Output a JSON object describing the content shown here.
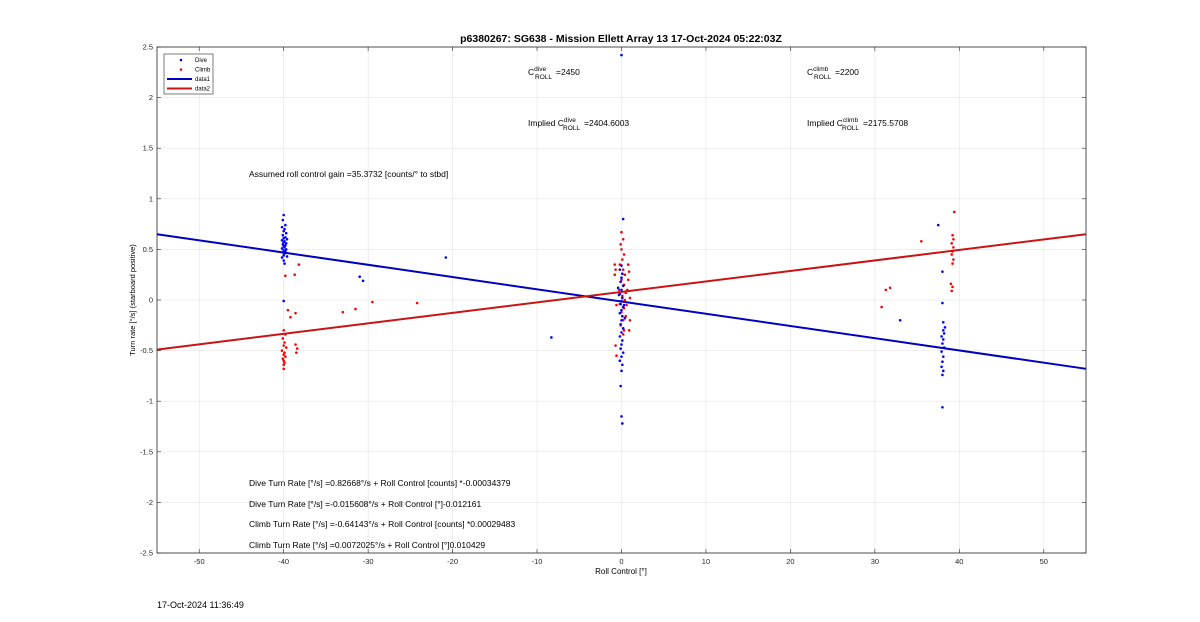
{
  "chart_data": {
    "type": "scatter",
    "title": "p6380267: SG638 - Mission Ellett Array 13 17-Oct-2024 05:22:03Z",
    "xlabel": "Roll Control [°]",
    "ylabel": "Turn rate [°/s] (starboard positive)",
    "xlim": [
      -55,
      55
    ],
    "ylim": [
      -2.5,
      2.5
    ],
    "xticks": [
      -50,
      -40,
      -30,
      -20,
      -10,
      0,
      10,
      20,
      30,
      40,
      50
    ],
    "yticks": [
      -2.5,
      -2,
      -1.5,
      -1,
      -0.5,
      0,
      0.5,
      1,
      1.5,
      2,
      2.5
    ],
    "grid": true,
    "legend_position": "top-left",
    "legend": [
      {
        "label": "Dive",
        "kind": "marker",
        "color": "#0000ff"
      },
      {
        "label": "Climb",
        "kind": "marker",
        "color": "#ff0000"
      },
      {
        "label": "data1",
        "kind": "line",
        "color": "#0000bf"
      },
      {
        "label": "data2",
        "kind": "line",
        "color": "#c81414"
      }
    ],
    "lines": [
      {
        "name": "data1",
        "color": "#0000bf",
        "x": [
          -55,
          55
        ],
        "y": [
          0.65,
          -0.68
        ]
      },
      {
        "name": "data2",
        "color": "#c81414",
        "x": [
          -55,
          55
        ],
        "y": [
          -0.49,
          0.65
        ]
      }
    ],
    "series": [
      {
        "name": "Dive",
        "color": "#0000ff",
        "points": [
          [
            -40,
            0.84
          ],
          [
            -40.1,
            0.79
          ],
          [
            -39.8,
            0.74
          ],
          [
            -40.2,
            0.72
          ],
          [
            -39.9,
            0.7
          ],
          [
            -40,
            0.68
          ],
          [
            -39.7,
            0.66
          ],
          [
            -40.1,
            0.64
          ],
          [
            -39.8,
            0.62
          ],
          [
            -40,
            0.61
          ],
          [
            -39.6,
            0.6
          ],
          [
            -40.2,
            0.59
          ],
          [
            -39.9,
            0.58
          ],
          [
            -40,
            0.57
          ],
          [
            -39.7,
            0.56
          ],
          [
            -40.1,
            0.55
          ],
          [
            -39.8,
            0.54
          ],
          [
            -40,
            0.53
          ],
          [
            -39.9,
            0.52
          ],
          [
            -40.2,
            0.51
          ],
          [
            -39.7,
            0.5
          ],
          [
            -40,
            0.49
          ],
          [
            -39.8,
            0.48
          ],
          [
            -40.1,
            0.47
          ],
          [
            -39.9,
            0.46
          ],
          [
            -40,
            0.44
          ],
          [
            -39.6,
            0.43
          ],
          [
            -40.2,
            0.42
          ],
          [
            -40,
            0.39
          ],
          [
            -39.9,
            0.36
          ],
          [
            -40,
            -0.01
          ],
          [
            -31,
            0.23
          ],
          [
            -30.6,
            0.19
          ],
          [
            -20.8,
            0.42
          ],
          [
            -8.3,
            -0.37
          ],
          [
            0,
            2.42
          ],
          [
            0.2,
            0.8
          ],
          [
            0,
            0.34
          ],
          [
            -0.2,
            0.3
          ],
          [
            0.1,
            0.26
          ],
          [
            0,
            0.22
          ],
          [
            -0.1,
            0.18
          ],
          [
            0.2,
            0.14
          ],
          [
            0,
            0.1
          ],
          [
            -0.2,
            0.06
          ],
          [
            0.1,
            0.02
          ],
          [
            0,
            -0.01
          ],
          [
            -0.1,
            -0.04
          ],
          [
            0.2,
            -0.07
          ],
          [
            0,
            -0.1
          ],
          [
            -0.2,
            -0.13
          ],
          [
            0.1,
            -0.16
          ],
          [
            0,
            -0.2
          ],
          [
            -0.1,
            -0.24
          ],
          [
            0.2,
            -0.28
          ],
          [
            0,
            -0.32
          ],
          [
            -0.2,
            -0.36
          ],
          [
            0.1,
            -0.4
          ],
          [
            0,
            -0.44
          ],
          [
            -0.1,
            -0.48
          ],
          [
            0.2,
            -0.52
          ],
          [
            0,
            -0.56
          ],
          [
            -0.2,
            -0.6
          ],
          [
            0.1,
            -0.64
          ],
          [
            0,
            -0.7
          ],
          [
            -0.1,
            -0.85
          ],
          [
            0,
            -1.15
          ],
          [
            0.1,
            -1.22
          ],
          [
            -0.3,
            0.05
          ],
          [
            0.3,
            -0.05
          ],
          [
            -0.4,
            0.12
          ],
          [
            0.4,
            -0.18
          ],
          [
            37.5,
            0.74
          ],
          [
            38,
            0.28
          ],
          [
            38,
            -0.03
          ],
          [
            38.1,
            -0.22
          ],
          [
            38.3,
            -0.27
          ],
          [
            38.1,
            -0.3
          ],
          [
            38.2,
            -0.33
          ],
          [
            37.9,
            -0.36
          ],
          [
            38.1,
            -0.39
          ],
          [
            38,
            -0.43
          ],
          [
            38.2,
            -0.47
          ],
          [
            37.9,
            -0.51
          ],
          [
            38.1,
            -0.56
          ],
          [
            38,
            -0.61
          ],
          [
            37.9,
            -0.66
          ],
          [
            38.1,
            -0.7
          ],
          [
            38,
            -0.74
          ],
          [
            38,
            -1.06
          ],
          [
            33,
            -0.2
          ]
        ]
      },
      {
        "name": "Climb",
        "color": "#ff0000",
        "points": [
          [
            -38.2,
            0.35
          ],
          [
            -39.8,
            0.24
          ],
          [
            -38.7,
            0.25
          ],
          [
            -39.5,
            -0.1
          ],
          [
            -38.6,
            -0.13
          ],
          [
            -39.2,
            -0.17
          ],
          [
            -40,
            -0.3
          ],
          [
            -39.8,
            -0.34
          ],
          [
            -40.1,
            -0.38
          ],
          [
            -39.9,
            -0.42
          ],
          [
            -40,
            -0.45
          ],
          [
            -39.7,
            -0.47
          ],
          [
            -40.2,
            -0.5
          ],
          [
            -39.9,
            -0.52
          ],
          [
            -40,
            -0.54
          ],
          [
            -39.8,
            -0.56
          ],
          [
            -40.1,
            -0.58
          ],
          [
            -40,
            -0.6
          ],
          [
            -39.9,
            -0.62
          ],
          [
            -40,
            -0.64
          ],
          [
            -40,
            -0.68
          ],
          [
            -38.6,
            -0.44
          ],
          [
            -38.4,
            -0.48
          ],
          [
            -38.5,
            -0.52
          ],
          [
            -33,
            -0.12
          ],
          [
            -29.5,
            -0.02
          ],
          [
            -31.5,
            -0.09
          ],
          [
            -24.2,
            -0.03
          ],
          [
            -0.8,
            0.35
          ],
          [
            -0.7,
            0.3
          ],
          [
            -0.8,
            0.25
          ],
          [
            -0.6,
            -0.05
          ],
          [
            -0.7,
            -0.45
          ],
          [
            -0.6,
            -0.55
          ],
          [
            0,
            0.67
          ],
          [
            0.2,
            0.6
          ],
          [
            -0.1,
            0.55
          ],
          [
            0,
            0.5
          ],
          [
            0.3,
            0.45
          ],
          [
            0.1,
            0.4
          ],
          [
            -0.2,
            0.35
          ],
          [
            0.2,
            0.3
          ],
          [
            0.4,
            0.25
          ],
          [
            0,
            0.2
          ],
          [
            0.3,
            0.15
          ],
          [
            -0.3,
            0.1
          ],
          [
            0.5,
            0.07
          ],
          [
            0.1,
            0.04
          ],
          [
            0.4,
            0
          ],
          [
            -0.2,
            -0.04
          ],
          [
            0.3,
            -0.08
          ],
          [
            0,
            -0.12
          ],
          [
            0.5,
            -0.16
          ],
          [
            0.2,
            -0.2
          ],
          [
            -0.1,
            -0.25
          ],
          [
            0.3,
            -0.3
          ],
          [
            0.6,
            -0.05
          ],
          [
            0.7,
            0.1
          ],
          [
            0.8,
            0.2
          ],
          [
            0.9,
            0.28
          ],
          [
            0.8,
            0.35
          ],
          [
            1.0,
            0.02
          ],
          [
            1.0,
            -0.2
          ],
          [
            0.9,
            -0.3
          ],
          [
            0.2,
            -0.34
          ],
          [
            35.5,
            0.58
          ],
          [
            31.8,
            0.12
          ],
          [
            31.3,
            0.1
          ],
          [
            30.8,
            -0.07
          ],
          [
            39.4,
            0.87
          ],
          [
            39.2,
            0.64
          ],
          [
            39.3,
            0.6
          ],
          [
            39.1,
            0.56
          ],
          [
            39.3,
            0.52
          ],
          [
            39.2,
            0.48
          ],
          [
            39.1,
            0.45
          ],
          [
            39.3,
            0.4
          ],
          [
            39.2,
            0.36
          ],
          [
            39,
            0.16
          ],
          [
            39.2,
            0.13
          ],
          [
            39.1,
            0.09
          ]
        ]
      }
    ],
    "annotations": {
      "c_dive": {
        "base": "C",
        "sup": "dive",
        "sub": "ROLL",
        "value": "=2450"
      },
      "c_climb": {
        "base": "C",
        "sup": "climb",
        "sub": "ROLL",
        "value": "=2200"
      },
      "implied_dive": {
        "prefix": "Implied ",
        "base": "C",
        "sup": "dive",
        "sub": "ROLL",
        "value": "=2404.6003"
      },
      "implied_climb": {
        "prefix": "Implied ",
        "base": "C",
        "sup": "climb",
        "sub": "ROLL",
        "value": "=2175.5708"
      },
      "gain": "Assumed roll control gain =35.3732 [counts/° to stbd]",
      "fits": [
        "Dive Turn Rate [°/s] =0.82668°/s + Roll Control [counts] *-0.00034379",
        "Dive Turn Rate [°/s] =-0.015608°/s + Roll Control [°]-0.012161",
        "Climb Turn Rate [°/s] =-0.64143°/s + Roll Control [counts] *0.00029483",
        "Climb Turn Rate [°/s] =0.0072025°/s + Roll Control [°]0.010429"
      ]
    }
  },
  "footer": {
    "timestamp": "17-Oct-2024 11:36:49"
  }
}
